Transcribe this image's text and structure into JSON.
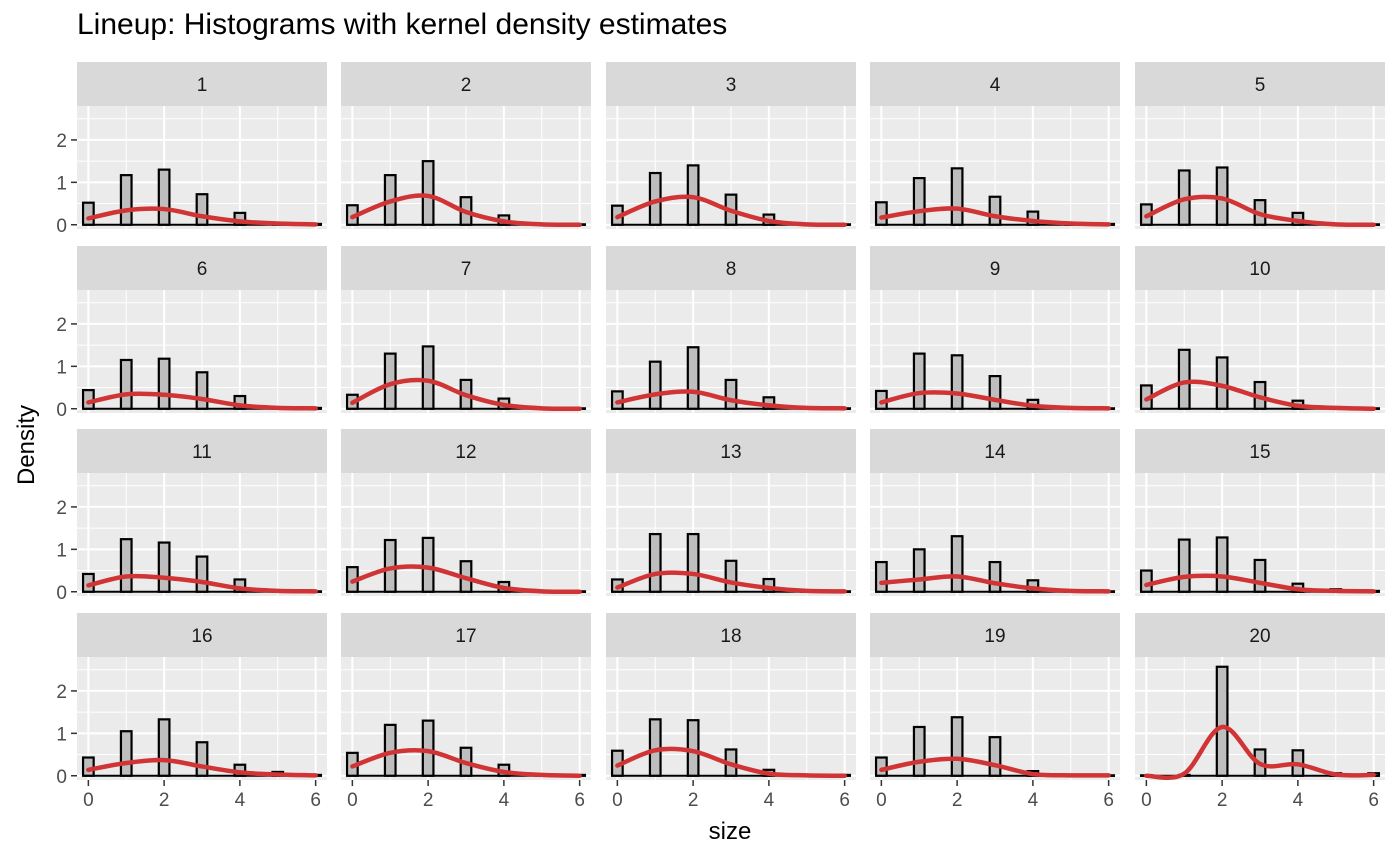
{
  "chart_data": {
    "type": "bar",
    "title": "Lineup: Histograms with kernel density estimates",
    "xlabel": "size",
    "ylabel": "Density",
    "xlim": [
      -0.3,
      6.3
    ],
    "ylim": [
      -0.1,
      2.8
    ],
    "x_ticks": [
      0,
      2,
      4,
      6
    ],
    "y_ticks": [
      0,
      1,
      2
    ],
    "bin_centers": [
      0,
      1,
      2,
      3,
      4,
      5,
      6
    ],
    "bar_fill": "#bebebe",
    "bar_outline": "#000000",
    "density_color": "#d03434",
    "panel_background": "#ebebeb",
    "strip_background": "#d9d9d9",
    "panels": [
      {
        "label": "1",
        "histogram": [
          0.52,
          1.17,
          1.3,
          0.72,
          0.28,
          0.02,
          0.02
        ],
        "density": [
          0.15,
          0.34,
          0.37,
          0.2,
          0.08,
          0.03,
          0.01
        ]
      },
      {
        "label": "2",
        "histogram": [
          0.46,
          1.17,
          1.5,
          0.65,
          0.22,
          0.01,
          0.01
        ],
        "density": [
          0.18,
          0.55,
          0.68,
          0.3,
          0.08,
          0.01,
          0.0
        ]
      },
      {
        "label": "3",
        "histogram": [
          0.45,
          1.22,
          1.4,
          0.71,
          0.24,
          0.01,
          0.01
        ],
        "density": [
          0.18,
          0.55,
          0.65,
          0.33,
          0.09,
          0.01,
          0.0
        ]
      },
      {
        "label": "4",
        "histogram": [
          0.53,
          1.1,
          1.33,
          0.66,
          0.31,
          0.04,
          0.02
        ],
        "density": [
          0.17,
          0.32,
          0.38,
          0.2,
          0.09,
          0.03,
          0.01
        ]
      },
      {
        "label": "5",
        "histogram": [
          0.48,
          1.28,
          1.35,
          0.58,
          0.28,
          0.02,
          0.01
        ],
        "density": [
          0.2,
          0.6,
          0.62,
          0.25,
          0.09,
          0.01,
          0.0
        ]
      },
      {
        "label": "6",
        "histogram": [
          0.44,
          1.15,
          1.18,
          0.86,
          0.3,
          0.02,
          0.02
        ],
        "density": [
          0.15,
          0.34,
          0.33,
          0.23,
          0.08,
          0.02,
          0.01
        ]
      },
      {
        "label": "7",
        "histogram": [
          0.33,
          1.3,
          1.47,
          0.68,
          0.24,
          0.01,
          0.01
        ],
        "density": [
          0.14,
          0.58,
          0.66,
          0.32,
          0.09,
          0.01,
          0.0
        ]
      },
      {
        "label": "8",
        "histogram": [
          0.41,
          1.11,
          1.45,
          0.68,
          0.27,
          0.03,
          0.01
        ],
        "density": [
          0.15,
          0.34,
          0.4,
          0.2,
          0.08,
          0.02,
          0.01
        ]
      },
      {
        "label": "9",
        "histogram": [
          0.42,
          1.3,
          1.26,
          0.77,
          0.21,
          0.02,
          0.01
        ],
        "density": [
          0.15,
          0.37,
          0.36,
          0.21,
          0.07,
          0.02,
          0.01
        ]
      },
      {
        "label": "10",
        "histogram": [
          0.55,
          1.39,
          1.21,
          0.63,
          0.19,
          0.04,
          0.01
        ],
        "density": [
          0.22,
          0.62,
          0.54,
          0.27,
          0.07,
          0.02,
          0.0
        ]
      },
      {
        "label": "11",
        "histogram": [
          0.42,
          1.24,
          1.16,
          0.83,
          0.29,
          0.01,
          0.01
        ],
        "density": [
          0.15,
          0.36,
          0.33,
          0.23,
          0.08,
          0.02,
          0.01
        ]
      },
      {
        "label": "12",
        "histogram": [
          0.58,
          1.22,
          1.27,
          0.72,
          0.23,
          0.01,
          0.01
        ],
        "density": [
          0.24,
          0.55,
          0.57,
          0.32,
          0.09,
          0.01,
          0.0
        ]
      },
      {
        "label": "13",
        "histogram": [
          0.29,
          1.36,
          1.36,
          0.73,
          0.3,
          0.01,
          0.01
        ],
        "density": [
          0.1,
          0.42,
          0.42,
          0.22,
          0.09,
          0.02,
          0.01
        ]
      },
      {
        "label": "14",
        "histogram": [
          0.7,
          1.0,
          1.31,
          0.7,
          0.27,
          0.03,
          0.01
        ],
        "density": [
          0.21,
          0.29,
          0.36,
          0.2,
          0.08,
          0.02,
          0.01
        ]
      },
      {
        "label": "15",
        "histogram": [
          0.5,
          1.23,
          1.28,
          0.75,
          0.19,
          0.06,
          0.02
        ],
        "density": [
          0.16,
          0.35,
          0.36,
          0.21,
          0.06,
          0.02,
          0.01
        ]
      },
      {
        "label": "16",
        "histogram": [
          0.43,
          1.05,
          1.33,
          0.79,
          0.26,
          0.09,
          0.02
        ],
        "density": [
          0.14,
          0.3,
          0.37,
          0.22,
          0.08,
          0.03,
          0.01
        ]
      },
      {
        "label": "17",
        "histogram": [
          0.54,
          1.2,
          1.3,
          0.66,
          0.26,
          0.02,
          0.02
        ],
        "density": [
          0.22,
          0.54,
          0.58,
          0.3,
          0.09,
          0.02,
          0.0
        ]
      },
      {
        "label": "18",
        "histogram": [
          0.59,
          1.33,
          1.31,
          0.62,
          0.14,
          0.02,
          0.02
        ],
        "density": [
          0.24,
          0.6,
          0.58,
          0.27,
          0.05,
          0.01,
          0.0
        ]
      },
      {
        "label": "19",
        "histogram": [
          0.43,
          1.15,
          1.38,
          0.91,
          0.11,
          0.01,
          0.01
        ],
        "density": [
          0.14,
          0.33,
          0.4,
          0.25,
          0.04,
          0.01,
          0.01
        ]
      },
      {
        "label": "20",
        "histogram": [
          0.01,
          0.02,
          2.57,
          0.62,
          0.6,
          0.06,
          0.06
        ],
        "density": [
          0.0,
          0.05,
          1.15,
          0.28,
          0.27,
          0.03,
          0.02
        ]
      }
    ]
  }
}
